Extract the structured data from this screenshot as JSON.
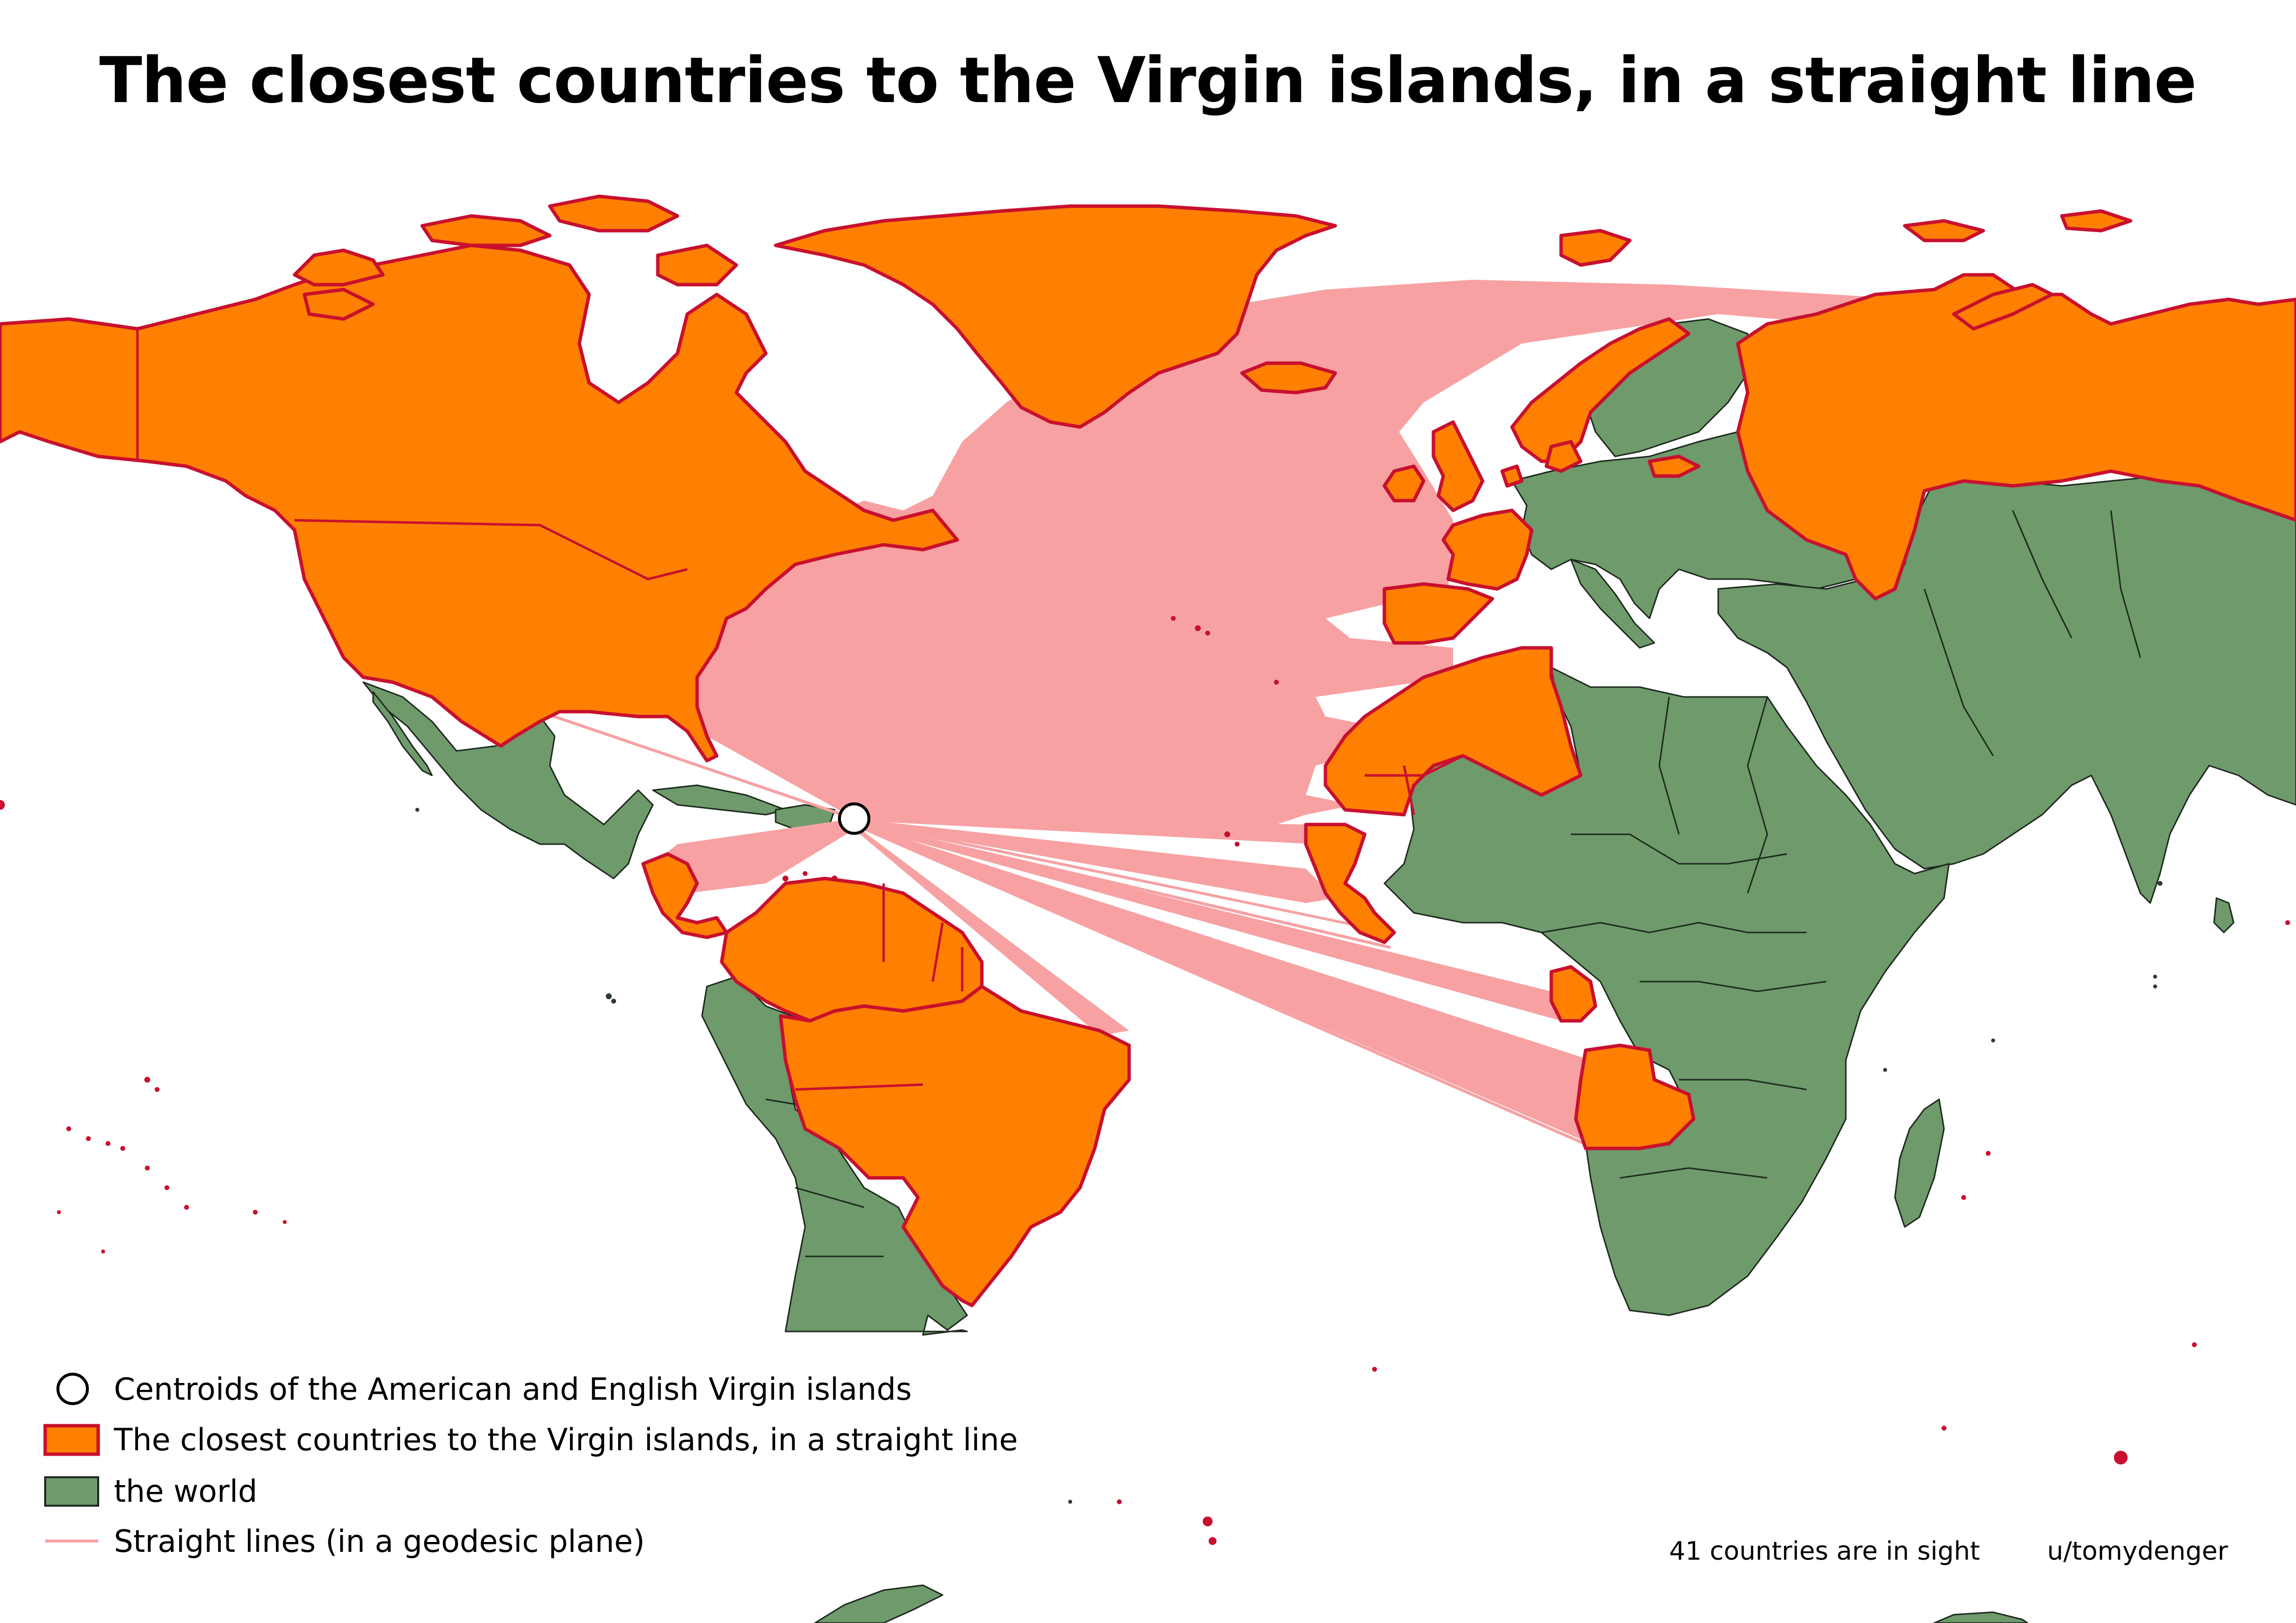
{
  "title": "The closest countries to the Virgin islands, in a straight line",
  "legend": [
    {
      "label": "Centroids of the American and English Virgin islands",
      "symbol": "circle-marker",
      "color": "#ffffff",
      "outline": "#000000"
    },
    {
      "label": "The closest countries to the Virgin islands, in a straight line",
      "symbol": "filled-box",
      "color": "#ff7f00",
      "outline": "#c8102e"
    },
    {
      "label": "the world",
      "symbol": "filled-box",
      "color": "#6e9a6c",
      "outline": "#1e2a1e"
    },
    {
      "label": "Straight lines (in a geodesic plane)",
      "symbol": "line",
      "color": "#f7a1a3"
    }
  ],
  "footer": {
    "count_note": "41 countries are in sight",
    "credit": "u/tomydenger"
  },
  "colors": {
    "highlight_fill": "#ff7f00",
    "highlight_outline": "#c8102e",
    "world_fill": "#6e9a6c",
    "line_color": "#f7a1a3",
    "background": "#ffffff"
  },
  "map": {
    "origin_marker": "Virgin Islands centroid",
    "highlighted_regions": [
      "Canada",
      "United States",
      "Greenland",
      "Iceland",
      "Norway",
      "Russia",
      "United Kingdom",
      "Ireland",
      "France",
      "Spain",
      "Portugal",
      "Morocco",
      "Western Sahara",
      "Algeria",
      "Mauritania",
      "Senegal",
      "Gambia",
      "Guinea-Bissau",
      "Guinea",
      "Sierra Leone",
      "Liberia",
      "Cabo Verde",
      "Equatorial Guinea",
      "Gabon",
      "Angola",
      "Brazil",
      "Venezuela",
      "Colombia",
      "Guyana",
      "Suriname",
      "French Guiana",
      "Ecuador",
      "Panama",
      "Costa Rica",
      "Nicaragua",
      "Honduras",
      "Netherlands",
      "Denmark",
      "Belgium",
      "Lithuania",
      "Latvia"
    ]
  }
}
